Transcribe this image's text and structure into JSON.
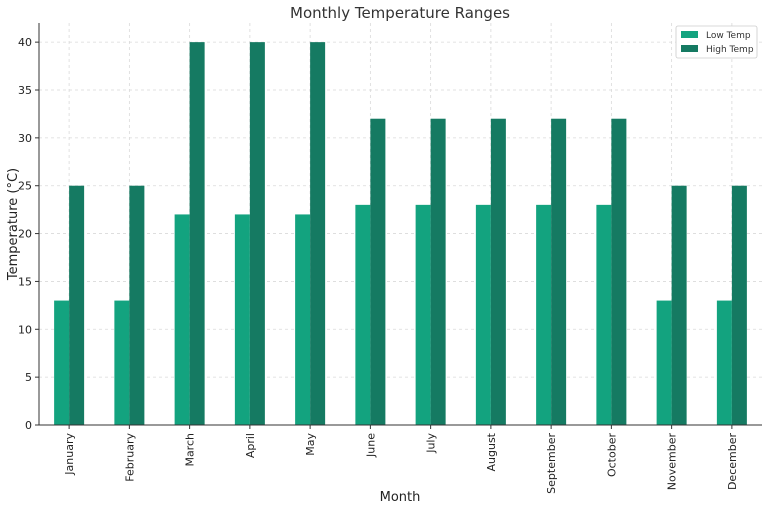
{
  "chart_data": {
    "type": "bar",
    "title": "Monthly Temperature Ranges",
    "xlabel": "Month",
    "ylabel": "Temperature (°C)",
    "categories": [
      "January",
      "February",
      "March",
      "April",
      "May",
      "June",
      "July",
      "August",
      "September",
      "October",
      "November",
      "December"
    ],
    "series": [
      {
        "name": "Low Temp",
        "color": "#13a37f",
        "values": [
          13,
          13,
          22,
          22,
          22,
          23,
          23,
          23,
          23,
          23,
          13,
          13
        ]
      },
      {
        "name": "High Temp",
        "color": "#157a62",
        "values": [
          25,
          25,
          40,
          40,
          40,
          32,
          32,
          32,
          32,
          32,
          25,
          25
        ]
      }
    ],
    "ylim": [
      0,
      42
    ],
    "yticks": [
      0,
      5,
      10,
      15,
      20,
      25,
      30,
      35,
      40
    ],
    "grid": true,
    "legend_position": "top-right"
  }
}
